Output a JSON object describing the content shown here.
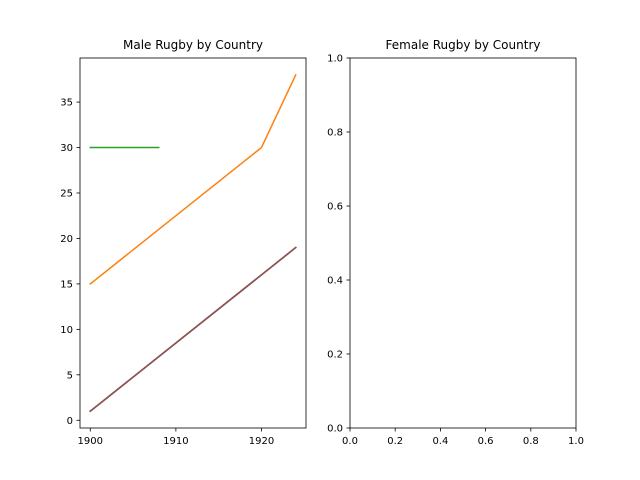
{
  "chart_data": [
    {
      "type": "line",
      "title": "Male Rugby by Country",
      "xlabel": "",
      "ylabel": "",
      "xlim": [
        1898.8,
        1925.2
      ],
      "ylim": [
        -0.85,
        39.85
      ],
      "xticks": [
        1900,
        1910,
        1920
      ],
      "yticks": [
        0,
        5,
        10,
        15,
        20,
        25,
        30,
        35
      ],
      "grid": false,
      "series": [
        {
          "color": "#1f77b4",
          "x": [
            1900,
            1924
          ],
          "values": [
            1,
            19
          ]
        },
        {
          "color": "#ff7f0e",
          "x": [
            1900,
            1920,
            1924
          ],
          "values": [
            15,
            30,
            38
          ]
        },
        {
          "color": "#2ca02c",
          "x": [
            1900,
            1908
          ],
          "values": [
            30,
            30
          ]
        },
        {
          "color": "#d62728",
          "x": [
            1900,
            1924
          ],
          "values": [
            1,
            19
          ]
        },
        {
          "color": "#9467bd",
          "x": [
            1900,
            1924
          ],
          "values": [
            1,
            19
          ]
        },
        {
          "color": "#8c564b",
          "x": [
            1900,
            1924
          ],
          "values": [
            1,
            19
          ]
        }
      ]
    },
    {
      "type": "line",
      "title": "Female Rugby by Country",
      "xlabel": "",
      "ylabel": "",
      "xlim": [
        0,
        1
      ],
      "ylim": [
        0,
        1
      ],
      "xticks": [
        0.0,
        0.2,
        0.4,
        0.6,
        0.8,
        1.0
      ],
      "yticks": [
        0.0,
        0.2,
        0.4,
        0.6,
        0.8,
        1.0
      ],
      "tick_decimals": 1,
      "grid": false,
      "series": []
    }
  ]
}
